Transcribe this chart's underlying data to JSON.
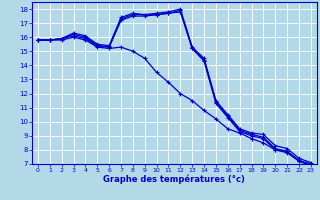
{
  "title": "Graphe des températures (°c)",
  "bg_color": "#b3d9e8",
  "grid_color": "#ffffff",
  "line_color": "#0000cc",
  "xlim": [
    -0.5,
    23.5
  ],
  "ylim": [
    7,
    18.5
  ],
  "xticks": [
    0,
    1,
    2,
    3,
    4,
    5,
    6,
    7,
    8,
    9,
    10,
    11,
    12,
    13,
    14,
    15,
    16,
    17,
    18,
    19,
    20,
    21,
    22,
    23
  ],
  "yticks": [
    7,
    8,
    9,
    10,
    11,
    12,
    13,
    14,
    15,
    16,
    17,
    18
  ],
  "series1": [
    15.8,
    15.8,
    15.9,
    16.3,
    16.1,
    15.5,
    15.4,
    17.4,
    17.7,
    17.6,
    17.7,
    17.8,
    18.0,
    15.3,
    14.5,
    11.5,
    10.5,
    9.5,
    9.2,
    9.1,
    8.3,
    8.1,
    7.4,
    7.1
  ],
  "series2": [
    15.8,
    15.8,
    15.8,
    16.0,
    15.8,
    15.3,
    15.2,
    15.3,
    15.0,
    14.5,
    13.5,
    12.8,
    12.0,
    11.5,
    10.8,
    10.2,
    9.5,
    9.2,
    8.8,
    8.5,
    8.0,
    7.8,
    7.2,
    6.9
  ],
  "series3_up": [
    15.8,
    15.8,
    15.9,
    16.2,
    16.0,
    15.4,
    15.3,
    17.3,
    17.6,
    17.6,
    17.6,
    17.7,
    17.8,
    15.2,
    14.3,
    11.3,
    10.3,
    9.3,
    9.0,
    8.8,
    8.0,
    7.9,
    7.2,
    6.9
  ],
  "series4": [
    15.8,
    15.8,
    15.9,
    16.1,
    15.9,
    15.4,
    15.3,
    17.2,
    17.5,
    17.5,
    17.6,
    17.7,
    17.9,
    15.2,
    14.4,
    11.4,
    10.4,
    9.4,
    9.1,
    8.9,
    8.1,
    7.9,
    7.25,
    7.0
  ]
}
